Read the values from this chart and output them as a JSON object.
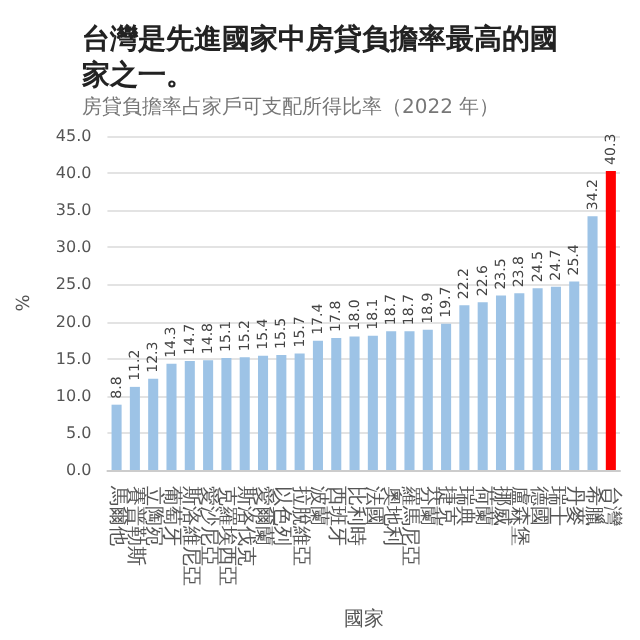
{
  "chart_data": {
    "type": "bar",
    "title": "台灣是先進國家中房貸負擔率最高的國家之一。",
    "subtitle": "房貸負擔率占家戶可支配所得比率（2022 年）",
    "xlabel": "國家",
    "ylabel": "%",
    "categories": [
      "馬爾他",
      "賽普勒斯",
      "立陶宛",
      "葡萄牙",
      "斯洛維尼亞",
      "愛沙尼亞",
      "克羅埃西亞",
      "斯洛伐克",
      "愛爾蘭",
      "以色列",
      "拉脫維亞",
      "波蘭",
      "西班牙",
      "比利時",
      "法國",
      "奧地利",
      "羅馬尼亞",
      "芬蘭",
      "捷克",
      "瑞典",
      "荷蘭",
      "挪威",
      "盧森堡",
      "德國",
      "瑞士",
      "丹麥",
      "希臘",
      "台灣"
    ],
    "values": [
      8.8,
      11.2,
      12.3,
      14.3,
      14.7,
      14.8,
      15.1,
      15.2,
      15.4,
      15.5,
      15.7,
      17.4,
      17.8,
      18.0,
      18.1,
      18.7,
      18.7,
      18.9,
      19.7,
      22.2,
      22.6,
      23.5,
      23.8,
      24.5,
      24.7,
      25.4,
      34.2,
      40.3
    ],
    "colors": [
      "#9dc3e6",
      "#9dc3e6",
      "#9dc3e6",
      "#9dc3e6",
      "#9dc3e6",
      "#9dc3e6",
      "#9dc3e6",
      "#9dc3e6",
      "#9dc3e6",
      "#9dc3e6",
      "#9dc3e6",
      "#9dc3e6",
      "#9dc3e6",
      "#9dc3e6",
      "#9dc3e6",
      "#9dc3e6",
      "#9dc3e6",
      "#9dc3e6",
      "#9dc3e6",
      "#9dc3e6",
      "#9dc3e6",
      "#9dc3e6",
      "#9dc3e6",
      "#9dc3e6",
      "#9dc3e6",
      "#9dc3e6",
      "#9dc3e6",
      "#ff0000"
    ],
    "value_labels": [
      "8.8",
      "11.2",
      "12.3",
      "14.3",
      "14.7",
      "14.8",
      "15.1",
      "15.2",
      "15.4",
      "15.5",
      "15.7",
      "17.4",
      "17.8",
      "18.0",
      "18.1",
      "18.7",
      "18.7",
      "18.9",
      "19.7",
      "22.2",
      "22.6",
      "23.5",
      "23.8",
      "24.5",
      "24.7",
      "25.4",
      "34.2",
      "40.3"
    ],
    "ylim": [
      0,
      45
    ],
    "yticks": [
      {
        "value": 0,
        "label": "0.0"
      },
      {
        "value": 5,
        "label": "5.0"
      },
      {
        "value": 10,
        "label": "10.0"
      },
      {
        "value": 15,
        "label": "15.0"
      },
      {
        "value": 20,
        "label": "20.0"
      },
      {
        "value": 25,
        "label": "25.0"
      },
      {
        "value": 30,
        "label": "30.0"
      },
      {
        "value": 35,
        "label": "35.0"
      },
      {
        "value": 40,
        "label": "40.0"
      },
      {
        "value": 45,
        "label": "45.0"
      }
    ],
    "grid": "y"
  }
}
